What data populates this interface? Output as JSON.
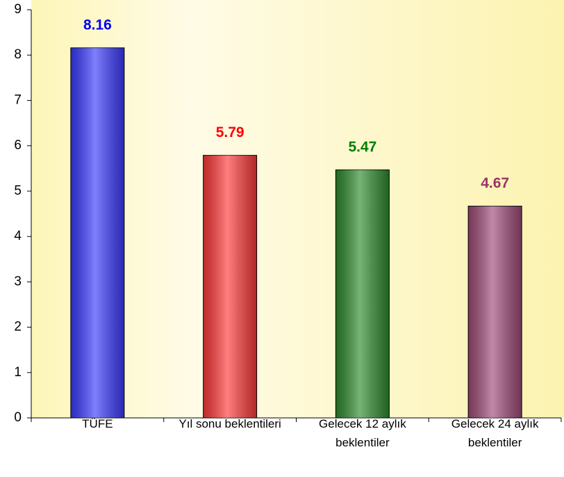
{
  "chart_data": {
    "type": "bar",
    "categories": [
      "TÜFE",
      "Yıl sonu beklentileri",
      "Gelecek 12 aylık beklentiler",
      "Gelecek 24 aylık beklentiler"
    ],
    "values": [
      8.16,
      5.79,
      5.47,
      4.67
    ],
    "colors": [
      "#3a3aff",
      "#ff3a3a",
      "#2e8b2e",
      "#a04a78"
    ],
    "label_colors": [
      "#0000ff",
      "#ff0000",
      "#008000",
      "#993366"
    ],
    "ylim": [
      0,
      9
    ],
    "yticks": [
      0,
      1,
      2,
      3,
      4,
      5,
      6,
      7,
      8,
      9
    ]
  }
}
